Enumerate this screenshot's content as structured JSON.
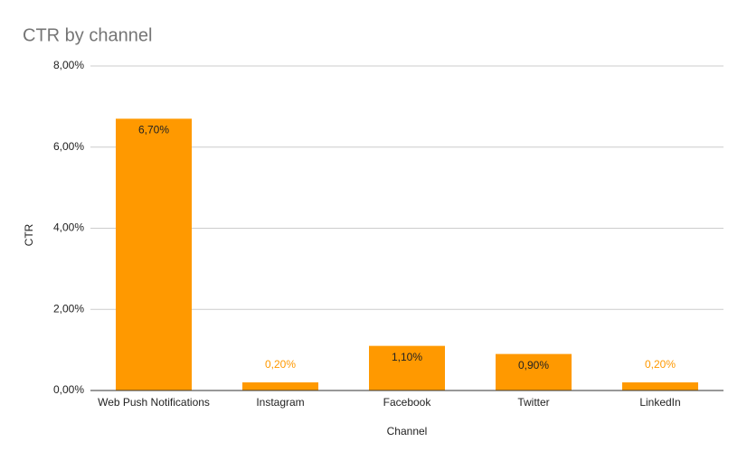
{
  "chart_data": {
    "type": "bar",
    "title": "CTR by channel",
    "x_label": "Channel",
    "y_label": "CTR",
    "categories": [
      "Web Push Notifications",
      "Instagram",
      "Facebook",
      "Twitter",
      "LinkedIn"
    ],
    "values": [
      6.7,
      0.2,
      1.1,
      0.9,
      0.2
    ],
    "value_labels": [
      "6,70%",
      "0,20%",
      "1,10%",
      "0,90%",
      "0,20%"
    ],
    "color": "#ff9900",
    "ylim": [
      0,
      8
    ],
    "yticks": [
      {
        "value": 0,
        "label": "0,00%"
      },
      {
        "value": 2,
        "label": "2,00%"
      },
      {
        "value": 4,
        "label": "4,00%"
      },
      {
        "value": 6,
        "label": "6,00%"
      },
      {
        "value": 8,
        "label": "8,00%"
      }
    ],
    "grid": true
  }
}
